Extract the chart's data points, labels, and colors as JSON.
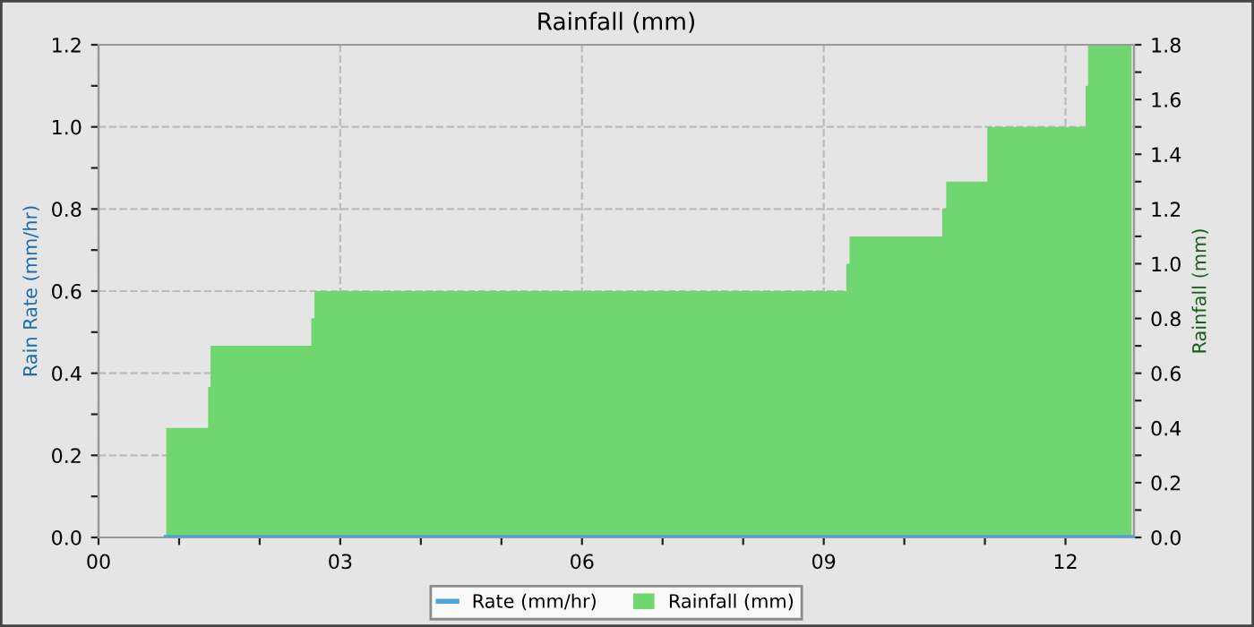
{
  "chart_data": {
    "type": "area",
    "title": "Rainfall (mm)",
    "ylabel": "Rain Rate (mm/hr)",
    "y2label": "Rainfall (mm)",
    "xlim": [
      0,
      12.85
    ],
    "ylim": [
      0,
      1.2
    ],
    "y2lim": [
      0,
      1.8
    ],
    "xticks": [
      {
        "value": 0,
        "label": "00"
      },
      {
        "value": 1,
        "label": null
      },
      {
        "value": 2,
        "label": null
      },
      {
        "value": 3,
        "label": "03"
      },
      {
        "value": 4,
        "label": null
      },
      {
        "value": 5,
        "label": null
      },
      {
        "value": 6,
        "label": "06"
      },
      {
        "value": 7,
        "label": null
      },
      {
        "value": 8,
        "label": null
      },
      {
        "value": 9,
        "label": "09"
      },
      {
        "value": 10,
        "label": null
      },
      {
        "value": 11,
        "label": null
      },
      {
        "value": 12,
        "label": "12"
      }
    ],
    "yticks": [
      {
        "value": 0,
        "label": "0.0"
      },
      {
        "value": 0.1,
        "label": null
      },
      {
        "value": 0.2,
        "label": "0.2"
      },
      {
        "value": 0.3,
        "label": null
      },
      {
        "value": 0.4,
        "label": "0.4"
      },
      {
        "value": 0.5,
        "label": null
      },
      {
        "value": 0.6,
        "label": "0.6"
      },
      {
        "value": 0.7,
        "label": null
      },
      {
        "value": 0.8,
        "label": "0.8"
      },
      {
        "value": 0.9,
        "label": null
      },
      {
        "value": 1.0,
        "label": "1.0"
      },
      {
        "value": 1.1,
        "label": null
      },
      {
        "value": 1.2,
        "label": "1.2"
      }
    ],
    "y2ticks": [
      {
        "value": 0,
        "label": "0.0"
      },
      {
        "value": 0.1,
        "label": null
      },
      {
        "value": 0.2,
        "label": "0.2"
      },
      {
        "value": 0.3,
        "label": null
      },
      {
        "value": 0.4,
        "label": "0.4"
      },
      {
        "value": 0.5,
        "label": null
      },
      {
        "value": 0.6,
        "label": "0.6"
      },
      {
        "value": 0.7,
        "label": null
      },
      {
        "value": 0.8,
        "label": "0.8"
      },
      {
        "value": 0.9,
        "label": null
      },
      {
        "value": 1.0,
        "label": "1.0"
      },
      {
        "value": 1.1,
        "label": null
      },
      {
        "value": 1.2,
        "label": "1.2"
      },
      {
        "value": 1.3,
        "label": null
      },
      {
        "value": 1.4,
        "label": "1.4"
      },
      {
        "value": 1.5,
        "label": null
      },
      {
        "value": 1.6,
        "label": "1.6"
      },
      {
        "value": 1.7,
        "label": null
      },
      {
        "value": 1.8,
        "label": "1.8"
      }
    ],
    "grid": true,
    "legend": "bottom",
    "series": [
      {
        "name": "Rate (mm/hr)",
        "type": "line",
        "color": "#4ea5d9",
        "x": [
          0.84,
          12.82
        ],
        "values": [
          0,
          0
        ]
      },
      {
        "name": "Rainfall (mm)",
        "axis": "y2",
        "color": "#70d670",
        "x": [
          0.84,
          1.36,
          1.36,
          1.39,
          1.39,
          2.64,
          2.64,
          2.68,
          2.68,
          9.28,
          9.28,
          9.32,
          9.32,
          10.47,
          10.47,
          10.52,
          10.52,
          11.03,
          11.03,
          12.25,
          12.25,
          12.28,
          12.28,
          12.82
        ],
        "values": [
          0.4,
          0.4,
          0.55,
          0.55,
          0.7,
          0.7,
          0.8,
          0.8,
          0.9,
          0.9,
          1.0,
          1.0,
          1.1,
          1.1,
          1.2,
          1.2,
          1.3,
          1.3,
          1.5,
          1.5,
          1.65,
          1.65,
          1.8,
          1.8
        ]
      }
    ]
  }
}
